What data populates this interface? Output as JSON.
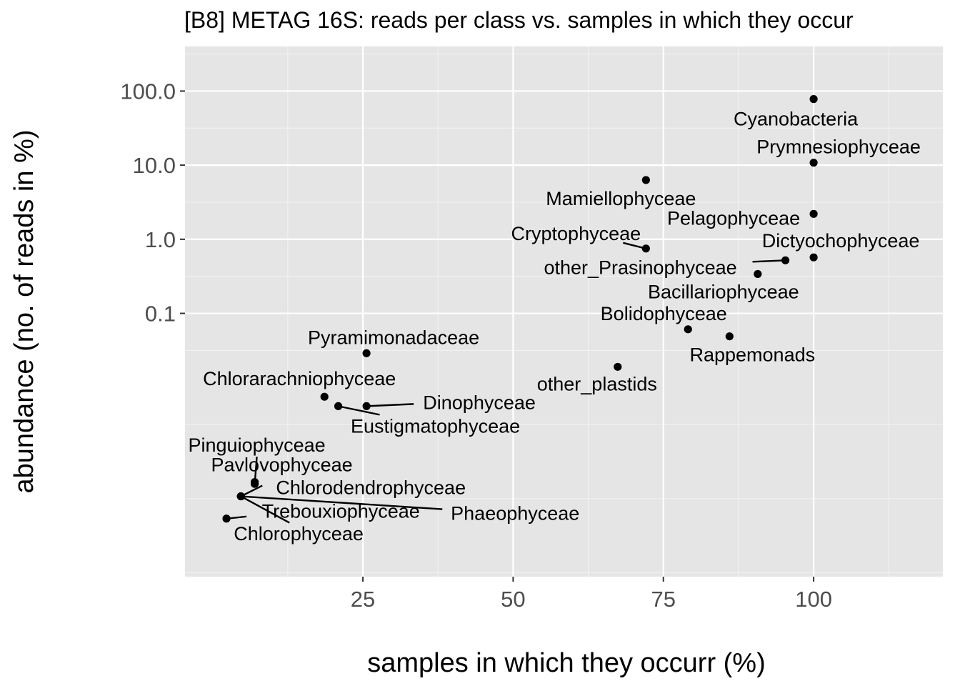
{
  "chart_data": {
    "type": "scatter",
    "title": "[B8] METAG 16S: reads per class vs. samples in which they occur",
    "xlabel": "samples in which they occurr (%)",
    "ylabel": "abundance (no. of reads in %)",
    "x_scale": "linear",
    "y_scale": "log10",
    "xlim": [
      -4.6,
      121.5
    ],
    "ylim": [
      2.8e-05,
      400
    ],
    "x_ticks": [
      25,
      50,
      75,
      100
    ],
    "x_tick_labels": [
      "25",
      "50",
      "75",
      "100"
    ],
    "y_ticks": [
      0.1,
      1,
      10,
      100
    ],
    "y_tick_labels": [
      "0.1",
      "1.0",
      "10.0",
      "100.0"
    ],
    "grid": true,
    "legend": "none",
    "points": [
      {
        "label": "Cyanobacteria",
        "x": 100,
        "y": 78
      },
      {
        "label": "Prymnesiophyceae",
        "x": 100,
        "y": 10.8
      },
      {
        "label": "Mamiellophyceae",
        "x": 72.1,
        "y": 6.3
      },
      {
        "label": "Pelagophyceae",
        "x": 100,
        "y": 2.2
      },
      {
        "label": "Cryptophyceae",
        "x": 72.1,
        "y": 0.75
      },
      {
        "label": "Dictyochophyceae",
        "x": 100,
        "y": 0.57
      },
      {
        "label": "other_Prasinophyceae",
        "x": 95.3,
        "y": 0.52
      },
      {
        "label": "Bacillariophyceae",
        "x": 90.7,
        "y": 0.34
      },
      {
        "label": "Bolidophyceae",
        "x": 79.1,
        "y": 0.061
      },
      {
        "label": "Rappemonads",
        "x": 86.0,
        "y": 0.049
      },
      {
        "label": "Pyramimonadaceae",
        "x": 25.6,
        "y": 0.029
      },
      {
        "label": "other_plastids",
        "x": 67.4,
        "y": 0.019
      },
      {
        "label": "Chlorarachniophyceae",
        "x": 18.6,
        "y": 0.0075
      },
      {
        "label": "Eustigmatophyceae",
        "x": 20.9,
        "y": 0.0056
      },
      {
        "label": "Dinophyceae",
        "x": 25.6,
        "y": 0.0056
      },
      {
        "label": "Pinguiophyceae",
        "x": 7.0,
        "y": 0.0005
      },
      {
        "label": "Pavlovophyceae",
        "x": 7.0,
        "y": 0.00053
      },
      {
        "label": "Chlorodendrophyceae",
        "x": 4.7,
        "y": 0.00034
      },
      {
        "label": "Phaeophyceae",
        "x": 4.7,
        "y": 0.00034
      },
      {
        "label": "Trebouxiophyceae",
        "x": 4.7,
        "y": 0.00034
      },
      {
        "label": "Chlorophyceae",
        "x": 2.3,
        "y": 0.00017
      }
    ]
  }
}
